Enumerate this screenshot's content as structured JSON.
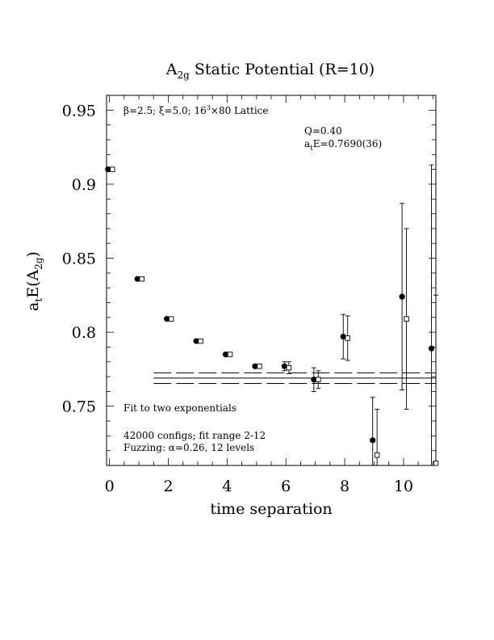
{
  "chart_data": {
    "type": "scatter",
    "title_main": "A",
    "title_sub": "2g",
    "title_rest": " Static Potential (R=10)",
    "xlabel": "time separation",
    "ylabel_main": "a",
    "ylabel_sub1": "t",
    "ylabel_mid": "E(A",
    "ylabel_sub2": "2g",
    "ylabel_end": ")",
    "xlim": [
      -0.1,
      11.1
    ],
    "ylim": [
      0.71,
      0.96
    ],
    "x_ticks": [
      0,
      2,
      4,
      6,
      8,
      10
    ],
    "x_tick_labels": [
      "0",
      "2",
      "4",
      "6",
      "8",
      "10"
    ],
    "y_ticks": [
      0.75,
      0.8,
      0.85,
      0.9,
      0.95
    ],
    "y_tick_labels": [
      "0.75",
      "0.8",
      "0.85",
      "0.9",
      "0.95"
    ],
    "annotations": {
      "lattice_beta": "β=2.5; ξ=5.0; 16",
      "lattice_sup": "3",
      "lattice_rest": "×80 Lattice",
      "q_value": "Q=0.40",
      "fit_energy_pre": "a",
      "fit_energy_sub": "t",
      "fit_energy_rest": "E=0.7690(36)",
      "fit_label": "Fit to two exponentials",
      "configs": "42000 configs; fit range 2-12",
      "fuzzing": "Fuzzing: α=0.26, 12 levels"
    },
    "series": [
      {
        "marker": "filled-circle",
        "points": [
          {
            "x": 0,
            "y": 0.91,
            "err": 0.0
          },
          {
            "x": 1,
            "y": 0.836,
            "err": 0.0
          },
          {
            "x": 2,
            "y": 0.809,
            "err": 0.0
          },
          {
            "x": 3,
            "y": 0.794,
            "err": 0.0
          },
          {
            "x": 4,
            "y": 0.785,
            "err": 0.0
          },
          {
            "x": 5,
            "y": 0.777,
            "err": 0.0
          },
          {
            "x": 6,
            "y": 0.777,
            "err": 0.003
          },
          {
            "x": 7,
            "y": 0.768,
            "err": 0.008
          },
          {
            "x": 8,
            "y": 0.797,
            "err": 0.015
          },
          {
            "x": 9,
            "y": 0.727,
            "err": 0.029
          },
          {
            "x": 10,
            "y": 0.824,
            "err": 0.063
          },
          {
            "x": 11,
            "y": 0.789,
            "err": 0.124
          }
        ]
      },
      {
        "marker": "open-square",
        "points": [
          {
            "x": 0,
            "y": 0.91,
            "err": 0.0
          },
          {
            "x": 1,
            "y": 0.836,
            "err": 0.0
          },
          {
            "x": 2,
            "y": 0.809,
            "err": 0.0
          },
          {
            "x": 3,
            "y": 0.794,
            "err": 0.0
          },
          {
            "x": 4,
            "y": 0.785,
            "err": 0.0
          },
          {
            "x": 5,
            "y": 0.777,
            "err": 0.0
          },
          {
            "x": 6,
            "y": 0.776,
            "err": 0.004
          },
          {
            "x": 7,
            "y": 0.768,
            "err": 0.006
          },
          {
            "x": 8,
            "y": 0.796,
            "err": 0.015
          },
          {
            "x": 9,
            "y": 0.717,
            "err": 0.031
          },
          {
            "x": 10,
            "y": 0.809,
            "err": 0.061
          },
          {
            "x": 11,
            "y": 0.71,
            "err": 0.115
          }
        ]
      }
    ],
    "fit": {
      "value": 0.769,
      "error": 0.0036,
      "x_range": [
        1.5,
        11.1
      ]
    },
    "grid": false,
    "legend": "none"
  }
}
